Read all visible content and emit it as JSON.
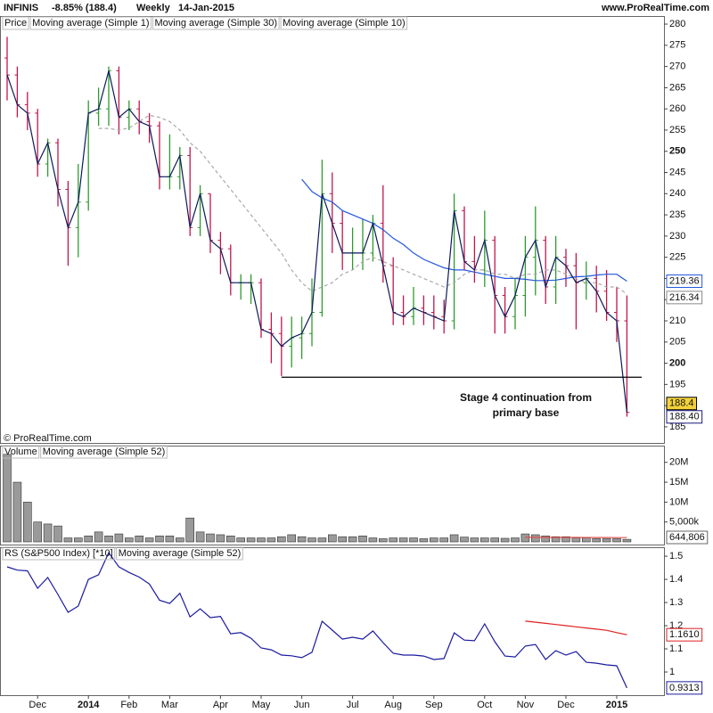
{
  "header": {
    "symbol": "INFINIS",
    "change": "-8.85% (188.4)",
    "period": "Weekly",
    "date": "14-Jan-2015",
    "site": "www.ProRealTime.com",
    "copyright": "© ProRealTime.com"
  },
  "chart_data": [
    {
      "type": "ohlc",
      "legend_title": "Price",
      "ylim": [
        181.2,
        281.9
      ],
      "yticks": [
        185,
        190,
        195,
        200,
        205,
        210,
        215,
        220,
        225,
        230,
        235,
        240,
        245,
        250,
        255,
        260,
        265,
        270,
        275,
        280
      ],
      "up_color": "#2e9a2e",
      "down_color": "#c0174c",
      "open": [
        272,
        268,
        261,
        259,
        247,
        252,
        241,
        232,
        238,
        259,
        260,
        269,
        258,
        260,
        257,
        256,
        244,
        244,
        249,
        232,
        240,
        229,
        227,
        219,
        219,
        219,
        208,
        207,
        204,
        206,
        207,
        212,
        240,
        233,
        226,
        226,
        226,
        233,
        223,
        212,
        211,
        213,
        212,
        211,
        210,
        236,
        224,
        222,
        229,
        216,
        211,
        216,
        225,
        229,
        218,
        225,
        223,
        219,
        220,
        217,
        212,
        210
      ],
      "high": [
        277,
        270,
        264,
        260,
        253,
        253,
        243,
        247,
        262,
        265,
        270,
        270,
        262,
        262,
        259,
        257,
        254,
        251,
        251,
        242,
        240,
        231,
        228,
        221,
        221,
        220,
        212,
        211,
        211,
        211,
        220,
        248,
        245,
        236,
        232,
        234,
        235,
        242,
        225,
        216,
        218,
        216,
        216,
        215,
        240,
        237,
        230,
        236,
        230,
        218,
        220,
        230,
        237,
        230,
        230,
        227,
        226,
        224,
        223,
        222,
        218,
        216
      ],
      "low": [
        262,
        258,
        255,
        244,
        244,
        237,
        223,
        225,
        236,
        256,
        256,
        254,
        255,
        254,
        252,
        241,
        241,
        241,
        230,
        230,
        226,
        221,
        216,
        215,
        214,
        206,
        200,
        197,
        199,
        201,
        204,
        211,
        226,
        222,
        222,
        222,
        224,
        219,
        209,
        209,
        209,
        209,
        208,
        207,
        208,
        222,
        219,
        218,
        207,
        207,
        208,
        211,
        216,
        214,
        214,
        218,
        208,
        215,
        212,
        210,
        205,
        187.4
      ],
      "series": [
        {
          "name": "Moving average (Simple 1)",
          "color": "#0b1a5c",
          "last_label": "188.40",
          "values": [
            268,
            261,
            259,
            247,
            252,
            241,
            232,
            238,
            259,
            260,
            269,
            258,
            260,
            257,
            256,
            244,
            244,
            249,
            232,
            240,
            229,
            227,
            219,
            219,
            219,
            208,
            207,
            204,
            206,
            207,
            212,
            240,
            233,
            226,
            226,
            226,
            233,
            223,
            212,
            211,
            213,
            212,
            211,
            210,
            236,
            224,
            222,
            229,
            216,
            211,
            216,
            225,
            229,
            218,
            225,
            223,
            219,
            220,
            217,
            212,
            210,
            188.4
          ]
        },
        {
          "name": "Moving average (Simple 30)",
          "color": "#2457dd",
          "last_label": "219.36",
          "values": [
            null,
            null,
            null,
            null,
            null,
            null,
            null,
            null,
            null,
            null,
            null,
            null,
            null,
            null,
            null,
            null,
            null,
            null,
            null,
            null,
            null,
            null,
            null,
            null,
            null,
            null,
            null,
            null,
            null,
            243.4,
            240.5,
            239,
            238,
            236,
            235,
            234,
            233,
            231.5,
            229.5,
            228,
            226,
            224.5,
            223.5,
            222.5,
            222,
            222,
            221.5,
            221,
            220.5,
            220,
            220,
            219.8,
            219.5,
            219.5,
            219.6,
            220,
            220.4,
            220.5,
            220.8,
            221,
            221,
            219.36
          ]
        },
        {
          "name": "Moving average (Simple 10)",
          "color": "#aaaaaa",
          "dashed": true,
          "last_label": "216.34",
          "values": [
            null,
            null,
            null,
            null,
            null,
            null,
            null,
            null,
            null,
            255.4,
            255.4,
            255,
            255.5,
            257,
            258.5,
            258,
            257,
            255,
            252,
            250,
            247,
            244,
            241,
            238,
            235,
            232,
            229,
            226,
            222,
            219,
            217,
            218,
            219,
            221,
            222,
            224,
            225,
            224,
            223,
            222,
            221,
            220,
            219,
            218,
            219,
            221,
            222,
            222,
            221,
            221,
            220,
            221,
            221,
            222,
            222,
            221,
            220,
            219,
            219,
            218,
            218,
            216.34
          ]
        }
      ],
      "price_label": "188.4",
      "support_level": 196.7,
      "support_start": 27,
      "annotation": [
        "Stage 4 continuation from",
        "primary base"
      ]
    },
    {
      "type": "volume",
      "legend_title": "Volume",
      "ylim": [
        0,
        24.2
      ],
      "yticks": [
        {
          "value": 5,
          "label": "5,000k"
        },
        {
          "value": 10,
          "label": "10M"
        },
        {
          "value": 15,
          "label": "15M"
        },
        {
          "value": 20,
          "label": "20M"
        }
      ],
      "color": "#9a9a9a",
      "values": [
        22,
        15,
        10,
        5,
        4.5,
        4,
        1,
        1,
        1.5,
        2.5,
        1.5,
        2,
        1,
        1.5,
        1,
        1.5,
        1.5,
        1,
        6,
        2.5,
        2,
        1.8,
        1.5,
        1,
        1,
        1,
        1,
        1.3,
        1.8,
        1.3,
        1,
        1,
        1.8,
        1.3,
        1.3,
        1.5,
        1,
        0.8,
        1,
        1,
        1,
        0.8,
        1,
        1,
        1.8,
        1.2,
        1,
        1,
        1,
        0.9,
        1,
        2,
        1.8,
        1.5,
        1.3,
        1.3,
        1,
        1,
        0.8,
        0.8,
        0.8,
        0.644806
      ],
      "last_label": "644,806",
      "series": [
        {
          "name": "Moving average (Simple 52)",
          "color": "#e05050",
          "values": [
            null,
            null,
            null,
            null,
            null,
            null,
            null,
            null,
            null,
            null,
            null,
            null,
            null,
            null,
            null,
            null,
            null,
            null,
            null,
            null,
            null,
            null,
            null,
            null,
            null,
            null,
            null,
            null,
            null,
            null,
            null,
            null,
            null,
            null,
            null,
            null,
            null,
            null,
            null,
            null,
            null,
            null,
            null,
            null,
            null,
            null,
            null,
            null,
            null,
            null,
            null,
            1.15,
            1.14,
            1.13,
            1.12,
            1.12,
            1.11,
            1.1,
            1.1,
            1.09,
            1.08,
            1.07
          ]
        }
      ]
    },
    {
      "type": "line",
      "ylim": [
        0.9,
        1.535
      ],
      "yticks": [
        1,
        1.1,
        1.2,
        1.3,
        1.4,
        1.5
      ],
      "categories": [
        null,
        null,
        null,
        "Dec",
        null,
        null,
        null,
        null,
        "2014",
        null,
        null,
        null,
        "Feb",
        null,
        null,
        null,
        "Mar",
        null,
        null,
        null,
        null,
        "Apr",
        null,
        null,
        null,
        "May",
        null,
        null,
        null,
        "Jun",
        null,
        null,
        null,
        null,
        "Jul",
        null,
        null,
        null,
        "Aug",
        null,
        null,
        null,
        "Sep",
        null,
        null,
        null,
        null,
        "Oct",
        null,
        null,
        null,
        "Nov",
        null,
        null,
        null,
        "Dec",
        null,
        null,
        null,
        null,
        "2015",
        null
      ],
      "series": [
        {
          "name": "RS (S&P500 Index) [*10]",
          "color": "#1a1aa0",
          "last_label": "0.9313",
          "values": [
            1.454,
            1.44,
            1.437,
            1.362,
            1.408,
            1.335,
            1.258,
            1.285,
            1.4,
            1.42,
            1.515,
            1.454,
            1.43,
            1.41,
            1.38,
            1.31,
            1.296,
            1.34,
            1.238,
            1.273,
            1.235,
            1.24,
            1.165,
            1.17,
            1.146,
            1.104,
            1.096,
            1.073,
            1.07,
            1.062,
            1.085,
            1.219,
            1.181,
            1.142,
            1.15,
            1.142,
            1.177,
            1.127,
            1.081,
            1.073,
            1.073,
            1.069,
            1.054,
            1.058,
            1.169,
            1.138,
            1.135,
            1.208,
            1.131,
            1.069,
            1.065,
            1.112,
            1.119,
            1.054,
            1.092,
            1.073,
            1.088,
            1.042,
            1.038,
            1.031,
            1.027,
            0.9313
          ]
        },
        {
          "name": "Moving average (Simple 52)",
          "color": "#e02020",
          "last_label": "1.1610",
          "values": [
            null,
            null,
            null,
            null,
            null,
            null,
            null,
            null,
            null,
            null,
            null,
            null,
            null,
            null,
            null,
            null,
            null,
            null,
            null,
            null,
            null,
            null,
            null,
            null,
            null,
            null,
            null,
            null,
            null,
            null,
            null,
            null,
            null,
            null,
            null,
            null,
            null,
            null,
            null,
            null,
            null,
            null,
            null,
            null,
            null,
            null,
            null,
            null,
            null,
            null,
            null,
            1.22,
            1.215,
            1.21,
            1.205,
            1.2,
            1.195,
            1.19,
            1.185,
            1.18,
            1.17,
            1.161
          ]
        }
      ]
    }
  ]
}
